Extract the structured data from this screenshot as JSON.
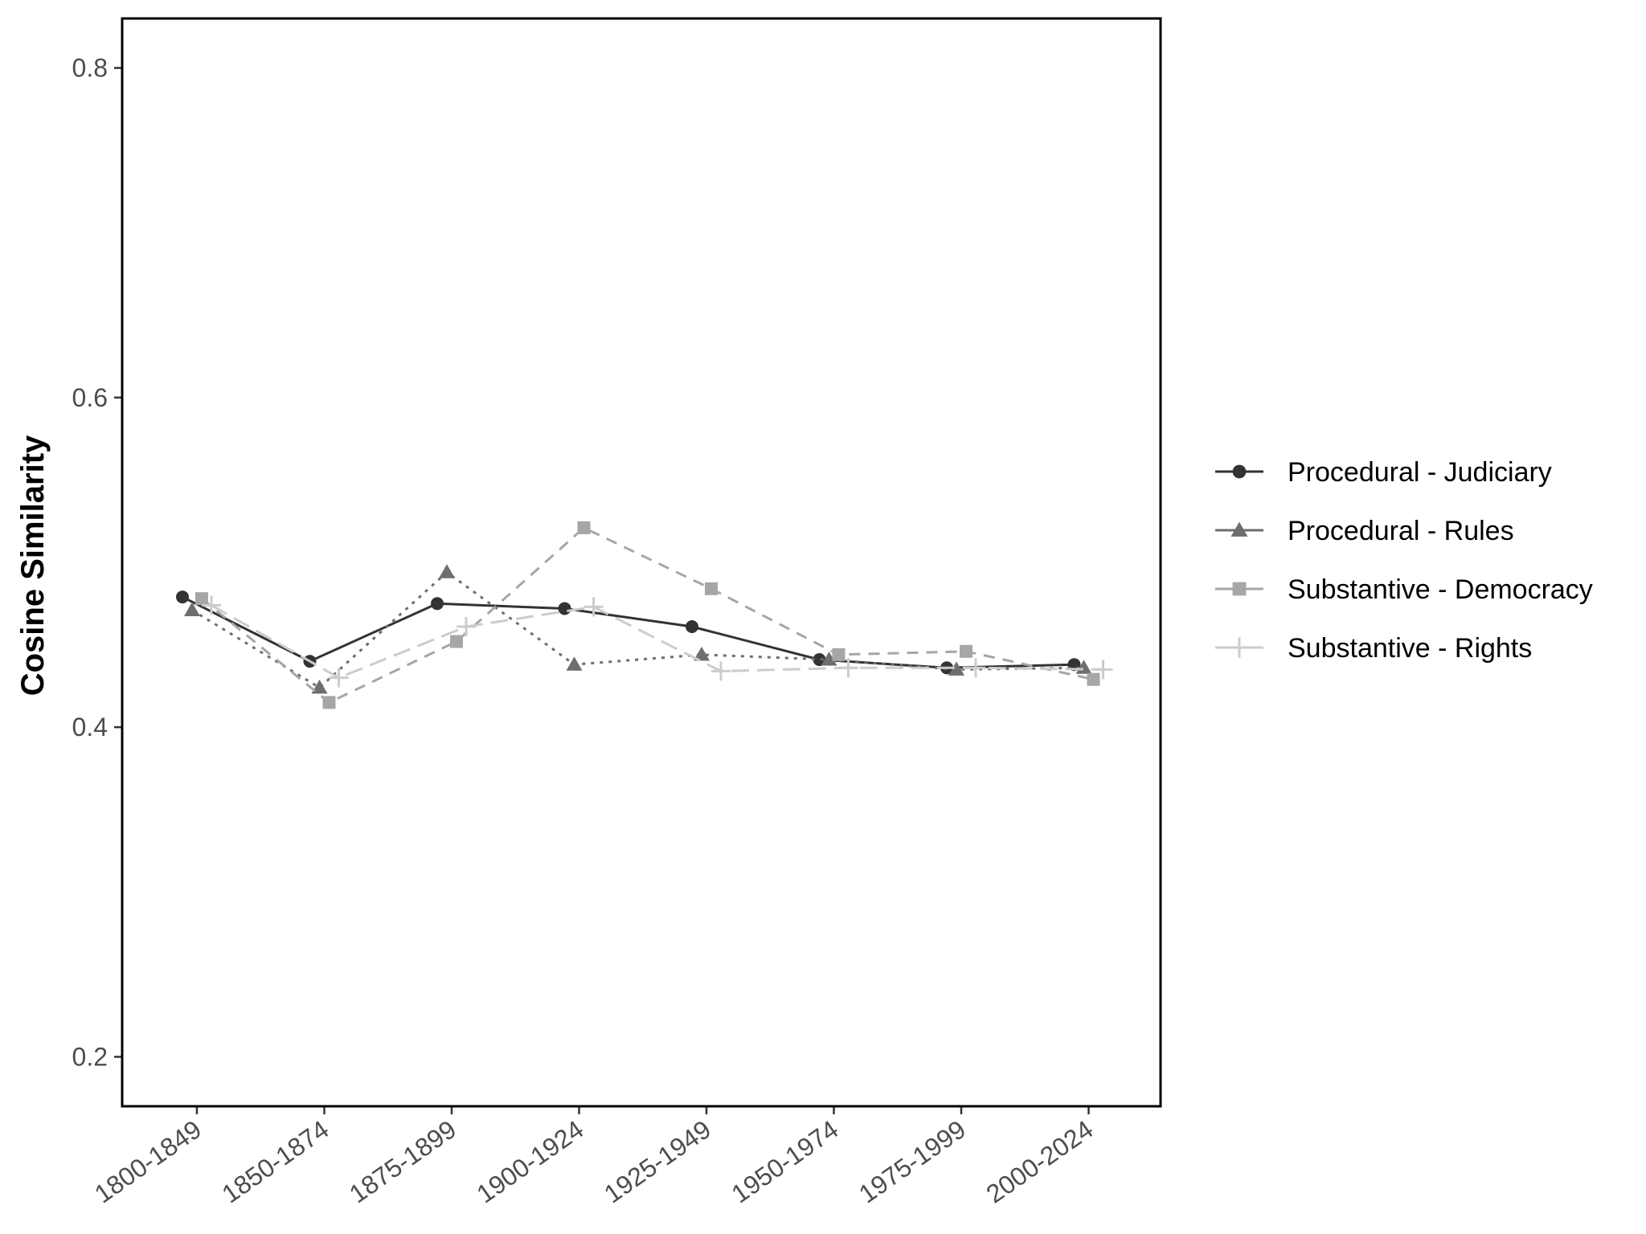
{
  "chart_data": {
    "type": "line",
    "title": "",
    "xlabel": "",
    "ylabel": "Cosine Similarity",
    "categories": [
      "1800-1849",
      "1850-1874",
      "1875-1899",
      "1900-1924",
      "1925-1949",
      "1950-1974",
      "1975-1999",
      "2000-2024"
    ],
    "ylim": [
      0.17,
      0.83
    ],
    "yticks": [
      0.2,
      0.4,
      0.6,
      0.8
    ],
    "ytick_labels": [
      "0.2",
      "0.4",
      "0.6",
      "0.8"
    ],
    "grid": false,
    "legend_position": "right",
    "series": [
      {
        "name": "Procedural - Judiciary",
        "color": "#333333",
        "marker": "circle",
        "line_style": "solid",
        "values": [
          0.479,
          0.44,
          0.475,
          0.472,
          0.461,
          0.441,
          0.436,
          0.438
        ]
      },
      {
        "name": "Procedural - Rules",
        "color": "#6e6e6e",
        "marker": "triangle",
        "line_style": "dotted",
        "values": [
          0.471,
          0.424,
          0.494,
          0.438,
          0.444,
          0.441,
          0.435,
          0.436
        ]
      },
      {
        "name": "Substantive - Democracy",
        "color": "#a6a6a6",
        "marker": "square",
        "line_style": "dashed",
        "values": [
          0.478,
          0.415,
          0.452,
          0.521,
          0.484,
          0.444,
          0.446,
          0.429
        ]
      },
      {
        "name": "Substantive - Rights",
        "color": "#cccccc",
        "marker": "plus",
        "line_style": "longdash",
        "values": [
          0.474,
          0.43,
          0.461,
          0.473,
          0.434,
          0.436,
          0.436,
          0.435
        ]
      }
    ]
  }
}
